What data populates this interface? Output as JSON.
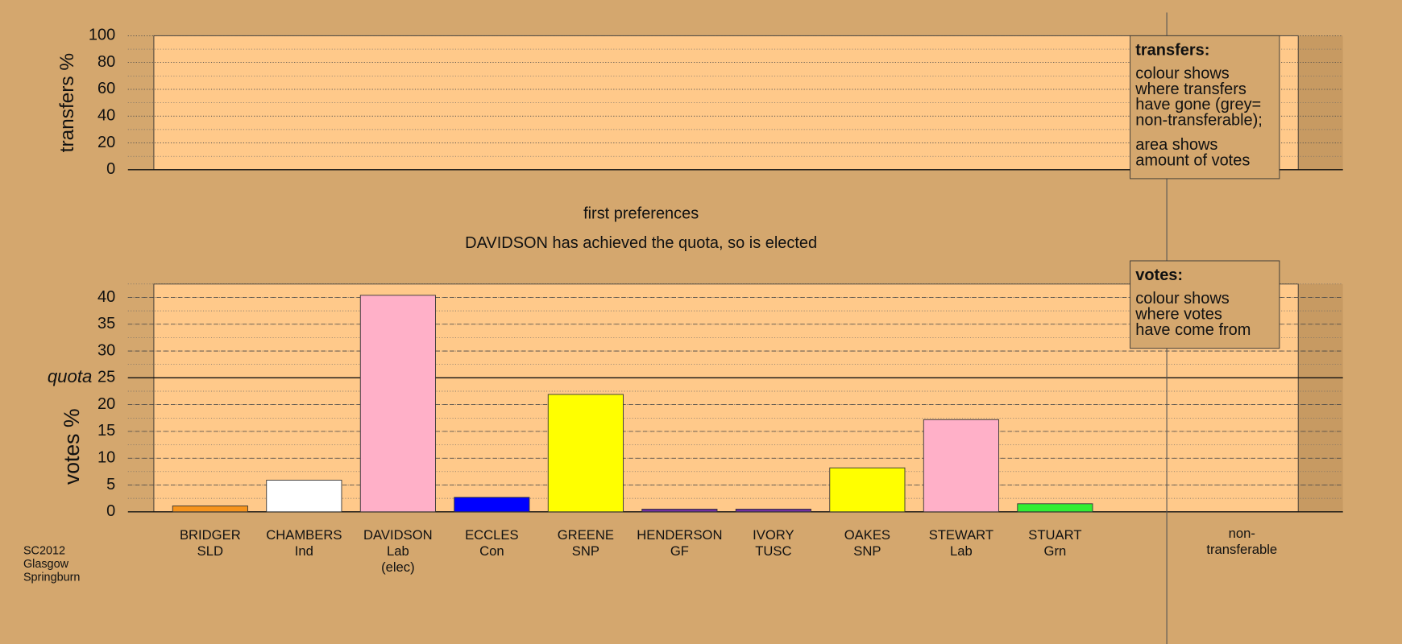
{
  "chart_data": [
    {
      "type": "bar",
      "y_label": "transfers %",
      "ylim": [
        0,
        100
      ],
      "yticks": [
        0,
        20,
        40,
        60,
        80,
        100
      ],
      "grid": true,
      "note": {
        "title": "transfers:",
        "paragraphs": [
          [
            "colour shows",
            "where transfers",
            "have gone (grey=",
            "non-transferable);"
          ],
          [
            "area shows",
            "amount of votes"
          ]
        ]
      }
    },
    {
      "type": "bar",
      "title": "first preferences",
      "subtitle": "DAVIDSON has achieved the quota, so is elected",
      "y_label": "votes %",
      "categories": [
        [
          "BRIDGER",
          "SLD"
        ],
        [
          "CHAMBERS",
          "Ind"
        ],
        [
          "DAVIDSON",
          "Lab",
          "(elec)"
        ],
        [
          "ECCLES",
          "Con"
        ],
        [
          "GREENE",
          "SNP"
        ],
        [
          "HENDERSON",
          "GF"
        ],
        [
          "IVORY",
          "TUSC"
        ],
        [
          "OAKES",
          "SNP"
        ],
        [
          "STEWART",
          "Lab"
        ],
        [
          "STUART",
          "Grn"
        ],
        [
          "non-",
          "transferable"
        ]
      ],
      "values": [
        1.1,
        5.9,
        40.4,
        2.7,
        21.9,
        0.5,
        0.5,
        8.2,
        17.2,
        1.5,
        null
      ],
      "colors": [
        "#f7941d",
        "#ffffff",
        "#ffb0c8",
        "#0000ff",
        "#ffff00",
        "#7030a0",
        "#7030a0",
        "#ffff00",
        "#ffb0c8",
        "#33ee33",
        null
      ],
      "ylim": [
        0,
        42.5
      ],
      "yticks": [
        0,
        5,
        10,
        15,
        20,
        25,
        30,
        35,
        40
      ],
      "grid": true,
      "quota": {
        "label": "quota",
        "value": 25
      },
      "note": {
        "title": "votes:",
        "paragraphs": [
          [
            "colour shows",
            "where votes",
            "have come from"
          ]
        ]
      }
    }
  ],
  "footer": [
    "SC2012",
    "Glasgow",
    "Springburn"
  ]
}
